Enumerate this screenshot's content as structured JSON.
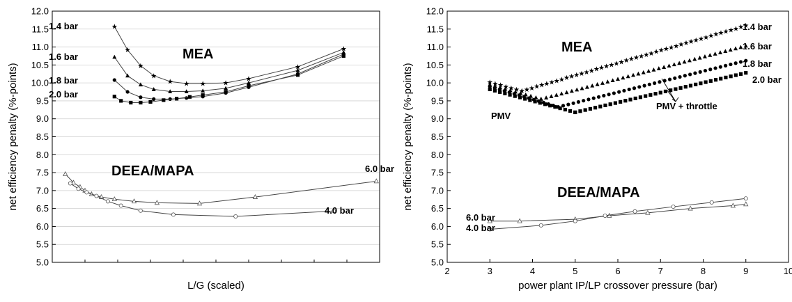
{
  "chart_data": [
    {
      "type": "line",
      "xlabel": "L/G (scaled)",
      "ylabel": "net efficiency penalty (%-points)",
      "ylim": [
        5.0,
        12.0
      ],
      "yticks": [
        "5.0",
        "5.5",
        "6.0",
        "6.5",
        "7.0",
        "7.5",
        "8.0",
        "8.5",
        "9.0",
        "9.5",
        "10.0",
        "10.5",
        "11.0",
        "11.5",
        "12.0"
      ],
      "x_tick_labels": "none",
      "xlim": [
        0,
        10
      ],
      "annotations": [
        "MEA",
        "DEEA/MAPA"
      ],
      "series": [
        {
          "name": "1.4 bar",
          "group": "MEA",
          "marker": "star",
          "x": [
            1.9,
            2.3,
            2.7,
            3.1,
            3.6,
            4.1,
            4.6,
            5.3,
            6.0,
            7.5,
            8.9
          ],
          "y": [
            11.57,
            10.92,
            10.48,
            10.2,
            10.04,
            9.98,
            9.98,
            10.0,
            10.12,
            10.45,
            10.95
          ]
        },
        {
          "name": "1.6 bar",
          "group": "MEA",
          "marker": "triangle",
          "x": [
            1.9,
            2.3,
            2.7,
            3.1,
            3.6,
            4.1,
            4.6,
            5.3,
            6.0,
            7.5,
            8.9
          ],
          "y": [
            10.72,
            10.2,
            9.95,
            9.82,
            9.76,
            9.76,
            9.78,
            9.85,
            10.0,
            10.35,
            10.85
          ]
        },
        {
          "name": "1.8 bar",
          "group": "MEA",
          "marker": "circle",
          "x": [
            1.9,
            2.3,
            2.7,
            3.1,
            3.6,
            4.1,
            4.6,
            5.3,
            6.0,
            7.5,
            8.9
          ],
          "y": [
            10.08,
            9.75,
            9.6,
            9.55,
            9.55,
            9.58,
            9.62,
            9.72,
            9.88,
            10.25,
            10.8
          ]
        },
        {
          "name": "2.0 bar",
          "group": "MEA",
          "marker": "square",
          "x": [
            1.9,
            2.1,
            2.4,
            2.7,
            3.0,
            3.4,
            3.8,
            4.2,
            4.6,
            5.3,
            6.0,
            7.5,
            8.9
          ],
          "y": [
            9.62,
            9.5,
            9.45,
            9.45,
            9.47,
            9.52,
            9.56,
            9.61,
            9.66,
            9.75,
            9.92,
            10.22,
            10.75
          ]
        },
        {
          "name": "6.0 bar",
          "group": "DEEA/MAPA",
          "marker": "open-triangle",
          "x": [
            0.4,
            0.65,
            0.85,
            1.0,
            1.2,
            1.5,
            1.9,
            2.5,
            3.2,
            4.5,
            6.2,
            9.9
          ],
          "y": [
            7.46,
            7.22,
            7.1,
            7.0,
            6.9,
            6.82,
            6.76,
            6.7,
            6.66,
            6.64,
            6.82,
            7.26
          ]
        },
        {
          "name": "4.0 bar",
          "group": "DEEA/MAPA",
          "marker": "open-circle",
          "x": [
            0.55,
            0.8,
            1.05,
            1.35,
            1.7,
            2.1,
            2.7,
            3.7,
            5.6,
            8.6
          ],
          "y": [
            7.2,
            7.05,
            6.95,
            6.85,
            6.7,
            6.58,
            6.44,
            6.33,
            6.28,
            6.43
          ]
        }
      ]
    },
    {
      "type": "line",
      "xlabel": "power plant IP/LP crossover pressure (bar)",
      "ylabel": "net efficiency penalty (%-points)",
      "xlim": [
        2,
        10
      ],
      "ylim": [
        5.0,
        12.0
      ],
      "xticks": [
        "2",
        "3",
        "4",
        "5",
        "6",
        "7",
        "8",
        "9",
        "10"
      ],
      "yticks": [
        "5.0",
        "5.5",
        "6.0",
        "6.5",
        "7.0",
        "7.5",
        "8.0",
        "8.5",
        "9.0",
        "9.5",
        "10.0",
        "10.5",
        "11.0",
        "11.5",
        "12.0"
      ],
      "annotations": [
        "MEA",
        "DEEA/MAPA",
        "PMV",
        "PMV + throttle"
      ],
      "series": [
        {
          "name": "1.4 bar",
          "group": "MEA",
          "marker": "star",
          "pmv": {
            "x": [
              3.0,
              3.75
            ],
            "y": [
              10.02,
              9.78
            ]
          },
          "throttle": {
            "x": [
              3.75,
              9.0
            ],
            "y": [
              9.78,
              11.6
            ]
          }
        },
        {
          "name": "1.6 bar",
          "group": "MEA",
          "marker": "triangle",
          "pmv": {
            "x": [
              3.0,
              4.2
            ],
            "y": [
              9.95,
              9.55
            ]
          },
          "throttle": {
            "x": [
              4.2,
              9.0
            ],
            "y": [
              9.55,
              11.03
            ]
          }
        },
        {
          "name": "1.8 bar",
          "group": "MEA",
          "marker": "circle",
          "pmv": {
            "x": [
              3.0,
              4.6
            ],
            "y": [
              9.9,
              9.33
            ]
          },
          "throttle": {
            "x": [
              4.6,
              9.0
            ],
            "y": [
              9.33,
              10.62
            ]
          }
        },
        {
          "name": "2.0 bar",
          "group": "MEA",
          "marker": "square",
          "pmv": {
            "x": [
              3.0,
              5.0
            ],
            "y": [
              9.82,
              9.18
            ]
          },
          "throttle": {
            "x": [
              5.0,
              9.0
            ],
            "y": [
              9.18,
              10.28
            ]
          }
        },
        {
          "name": "6.0 bar",
          "group": "DEEA/MAPA",
          "marker": "open-triangle",
          "x": [
            3.0,
            3.7,
            5.0,
            5.8,
            6.7,
            7.7,
            8.7,
            9.0
          ],
          "y": [
            6.15,
            6.15,
            6.2,
            6.3,
            6.38,
            6.5,
            6.58,
            6.62
          ]
        },
        {
          "name": "4.0 bar",
          "group": "DEEA/MAPA",
          "marker": "open-circle",
          "x": [
            3.0,
            4.2,
            5.0,
            5.7,
            6.4,
            7.3,
            8.2,
            9.0
          ],
          "y": [
            5.92,
            6.03,
            6.15,
            6.3,
            6.42,
            6.55,
            6.67,
            6.78
          ]
        }
      ]
    }
  ]
}
